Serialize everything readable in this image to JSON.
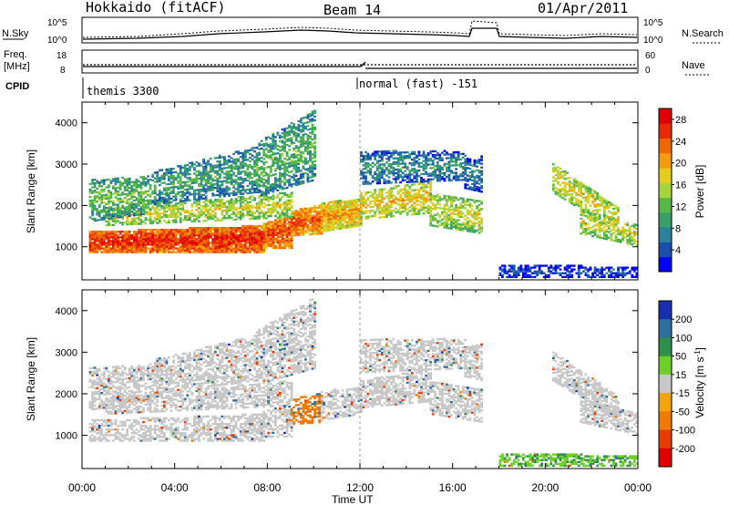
{
  "header": {
    "station": "Hokkaido (fitACF)",
    "beam": "Beam 14",
    "date": "01/Apr/2011"
  },
  "noise_panel": {
    "left_label": "N.Sky",
    "right_label": "N.Search",
    "left_ticks": [
      "10^5",
      "10^0"
    ],
    "right_ticks": [
      "10^5",
      "10^0"
    ]
  },
  "freq_panel": {
    "left_label_1": "Freq.",
    "left_label_2": "[MHz]",
    "right_label": "Nave",
    "left_ticks": [
      "18",
      "8"
    ],
    "right_ticks": [
      "60",
      "0"
    ]
  },
  "cpid_panel": {
    "label": "CPID",
    "modes": [
      {
        "start_hour": 0,
        "name": "themis 3300"
      },
      {
        "start_hour": 12,
        "name": "normal (fast) -151"
      }
    ]
  },
  "chart_data": [
    {
      "type": "heatmap",
      "quantity": "power",
      "xlabel": "",
      "ylabel": "Slant Range [km]",
      "xlim": [
        0,
        24
      ],
      "ylim": [
        200,
        4500
      ],
      "yticks": [
        1000,
        2000,
        3000,
        4000
      ],
      "colorbar": {
        "label": "Power [dB]",
        "ticks": [
          4,
          8,
          12,
          16,
          20,
          24,
          28
        ],
        "range": [
          0,
          30
        ],
        "colors": [
          "#0000ff",
          "#1a4fb0",
          "#2e7f9c",
          "#3aa06a",
          "#56b846",
          "#a9d33a",
          "#e6cc1e",
          "#f39c10",
          "#ef6808",
          "#e82a04",
          "#e10000"
        ]
      },
      "echo_regions": [
        {
          "t": [
            0.3,
            7.8
          ],
          "r0": [
            850,
            850
          ],
          "r1": [
            1350,
            1500
          ],
          "p": 27
        },
        {
          "t": [
            7.8,
            9.0
          ],
          "r0": [
            950,
            950
          ],
          "r1": [
            1550,
            1750
          ],
          "p": 25
        },
        {
          "t": [
            9.0,
            10.3
          ],
          "r0": [
            1250,
            1300
          ],
          "r1": [
            1850,
            2000
          ],
          "p": 24
        },
        {
          "t": [
            10.3,
            12.0
          ],
          "r0": [
            1350,
            1500
          ],
          "r1": [
            2050,
            2150
          ],
          "p": 21
        },
        {
          "t": [
            1.0,
            9.0
          ],
          "r0": [
            1500,
            1700
          ],
          "r1": [
            1900,
            2300
          ],
          "p": 17
        },
        {
          "t": [
            0.3,
            3.0
          ],
          "r0": [
            1600,
            1800
          ],
          "r1": [
            2600,
            2700
          ],
          "p": 13
        },
        {
          "t": [
            3.0,
            7.5
          ],
          "r0": [
            2000,
            2300
          ],
          "r1": [
            2800,
            3400
          ],
          "p": 11
        },
        {
          "t": [
            7.5,
            10.0
          ],
          "r0": [
            2200,
            2600
          ],
          "r1": [
            3500,
            4300
          ],
          "p": 12
        },
        {
          "t": [
            12.0,
            15.0
          ],
          "r0": [
            1650,
            1800
          ],
          "r1": [
            2300,
            2600
          ],
          "p": 19
        },
        {
          "t": [
            15.0,
            17.3
          ],
          "r0": [
            1500,
            1300
          ],
          "r1": [
            2300,
            2100
          ],
          "p": 17
        },
        {
          "t": [
            12.0,
            16.5
          ],
          "r0": [
            2500,
            2600
          ],
          "r1": [
            3300,
            3300
          ],
          "p": 9
        },
        {
          "t": [
            16.5,
            17.3
          ],
          "r0": [
            2400,
            2300
          ],
          "r1": [
            3100,
            3200
          ],
          "p": 8
        },
        {
          "t": [
            20.3,
            23.2
          ],
          "r0": [
            2300,
            1300
          ],
          "r1": [
            3000,
            1900
          ],
          "p": 18
        },
        {
          "t": [
            21.5,
            24.0
          ],
          "r0": [
            1300,
            1000
          ],
          "r1": [
            1900,
            1500
          ],
          "p": 17
        },
        {
          "t": [
            18.0,
            24.0
          ],
          "r0": [
            250,
            250
          ],
          "r1": [
            550,
            500
          ],
          "p": 5
        }
      ]
    },
    {
      "type": "heatmap",
      "quantity": "velocity",
      "xlabel": "Time UT",
      "ylabel": "Slant Range [km]",
      "xlim": [
        0,
        24
      ],
      "ylim": [
        200,
        4500
      ],
      "xticks": [
        "00:00",
        "04:00",
        "08:00",
        "12:00",
        "16:00",
        "20:00",
        "00:00"
      ],
      "yticks": [
        1000,
        2000,
        3000,
        4000
      ],
      "colorbar": {
        "label": "Velocity [m s^-1]",
        "ticks": [
          "200",
          "100",
          "50",
          "15",
          "-15",
          "-50",
          "-100",
          "-200"
        ],
        "colors": [
          "#1a2fb0",
          "#2e6fa0",
          "#2e8f4a",
          "#6ecf2a",
          "#c8c8c8",
          "#f2a40e",
          "#ef7a08",
          "#e83c04",
          "#e10000"
        ]
      },
      "echo_regions": [
        {
          "t": [
            0.3,
            7.8
          ],
          "r0": [
            850,
            850
          ],
          "r1": [
            1350,
            1500
          ],
          "v": 0
        },
        {
          "t": [
            7.8,
            9.0
          ],
          "r0": [
            950,
            950
          ],
          "r1": [
            1550,
            1750
          ],
          "v": 0
        },
        {
          "t": [
            9.0,
            10.3
          ],
          "r0": [
            1250,
            1300
          ],
          "r1": [
            1850,
            2000
          ],
          "v": -40
        },
        {
          "t": [
            10.3,
            12.0
          ],
          "r0": [
            1350,
            1500
          ],
          "r1": [
            2050,
            2150
          ],
          "v": 0
        },
        {
          "t": [
            1.0,
            9.0
          ],
          "r0": [
            1500,
            1700
          ],
          "r1": [
            1900,
            2300
          ],
          "v": 0
        },
        {
          "t": [
            0.3,
            3.0
          ],
          "r0": [
            1600,
            1800
          ],
          "r1": [
            2600,
            2700
          ],
          "v": 0
        },
        {
          "t": [
            3.0,
            7.5
          ],
          "r0": [
            2000,
            2300
          ],
          "r1": [
            2800,
            3400
          ],
          "v": 0
        },
        {
          "t": [
            7.5,
            10.0
          ],
          "r0": [
            2200,
            2600
          ],
          "r1": [
            3500,
            4300
          ],
          "v": 0
        },
        {
          "t": [
            12.0,
            15.0
          ],
          "r0": [
            1650,
            1800
          ],
          "r1": [
            2300,
            2600
          ],
          "v": 0
        },
        {
          "t": [
            15.0,
            17.3
          ],
          "r0": [
            1500,
            1300
          ],
          "r1": [
            2300,
            2100
          ],
          "v": 0
        },
        {
          "t": [
            12.0,
            16.5
          ],
          "r0": [
            2500,
            2600
          ],
          "r1": [
            3300,
            3300
          ],
          "v": 0
        },
        {
          "t": [
            16.5,
            17.3
          ],
          "r0": [
            2400,
            2300
          ],
          "r1": [
            3100,
            3200
          ],
          "v": 0
        },
        {
          "t": [
            20.3,
            23.2
          ],
          "r0": [
            2300,
            1300
          ],
          "r1": [
            3000,
            1900
          ],
          "v": 0
        },
        {
          "t": [
            21.5,
            24.0
          ],
          "r0": [
            1300,
            1000
          ],
          "r1": [
            1900,
            1500
          ],
          "v": 0
        },
        {
          "t": [
            18.0,
            24.0
          ],
          "r0": [
            250,
            250
          ],
          "r1": [
            550,
            500
          ],
          "v": 30
        }
      ]
    }
  ]
}
